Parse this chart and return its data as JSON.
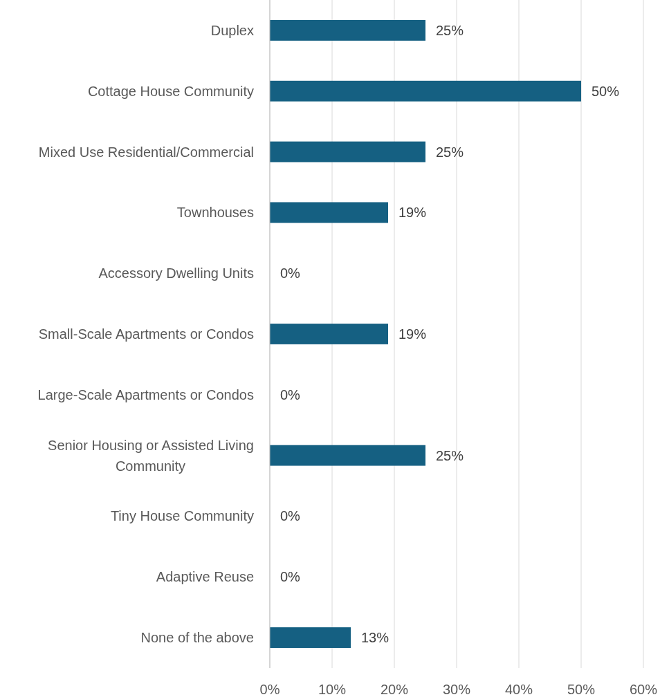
{
  "chart_data": {
    "type": "bar",
    "orientation": "horizontal",
    "categories": [
      "Duplex",
      "Cottage House Community",
      "Mixed Use Residential/Commercial",
      "Townhouses",
      "Accessory Dwelling Units",
      "Small-Scale Apartments or Condos",
      "Large-Scale Apartments or Condos",
      "Senior Housing or Assisted Living Community",
      "Tiny House Community",
      "Adaptive Reuse",
      "None of the above"
    ],
    "values": [
      25,
      50,
      25,
      19,
      0,
      19,
      0,
      25,
      0,
      0,
      13
    ],
    "value_labels": [
      "25%",
      "50%",
      "25%",
      "19%",
      "0%",
      "19%",
      "0%",
      "25%",
      "0%",
      "0%",
      "13%"
    ],
    "color": "#156082",
    "xlim": [
      0,
      60
    ],
    "xticks": [
      {
        "value": 0,
        "label": "0%"
      },
      {
        "value": 10,
        "label": "10%"
      },
      {
        "value": 20,
        "label": "20%"
      },
      {
        "value": 30,
        "label": "30%"
      },
      {
        "value": 40,
        "label": "40%"
      },
      {
        "value": 50,
        "label": "50%"
      },
      {
        "value": 60,
        "label": "60%"
      }
    ],
    "grid": "x"
  }
}
